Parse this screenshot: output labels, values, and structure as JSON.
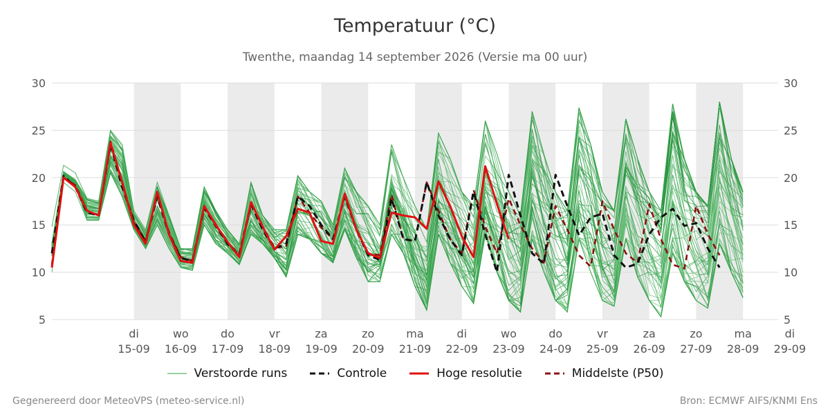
{
  "title": "Temperatuur (°C)",
  "subtitle": "Twenthe, maandag 14 september 2026 (Versie ma 00 uur)",
  "footer": {
    "left": "Gegenereerd door MeteoVPS (meteo-service.nl)",
    "right": "Bron: ECMWF AIFS/KNMI Ens"
  },
  "colors": {
    "ensemble": "#2e9e44",
    "control": "#111111",
    "hires": "#e01010",
    "median": "#8b1010",
    "weekend_band": "#ebebeb",
    "grid": "#dddddd"
  },
  "legend": [
    {
      "key": "ensemble",
      "label": "Verstoorde runs",
      "style": "thin"
    },
    {
      "key": "control",
      "label": "Controle",
      "style": "dashed"
    },
    {
      "key": "hires",
      "label": "Hoge resolutie",
      "style": "solid"
    },
    {
      "key": "median",
      "label": "Middelste (P50)",
      "style": "dashed"
    }
  ],
  "chart_data": {
    "type": "line",
    "title": "Temperatuur (°C)",
    "ylim": [
      5,
      30
    ],
    "yticks": [
      5,
      10,
      15,
      20,
      25,
      30
    ],
    "x_unit": "days after 2026-09-14 00:00",
    "xlim": [
      -0.75,
      14.75
    ],
    "xticks": [
      {
        "day": 1,
        "weekday": "di",
        "date": "15-09"
      },
      {
        "day": 2,
        "weekday": "wo",
        "date": "16-09"
      },
      {
        "day": 3,
        "weekday": "do",
        "date": "17-09"
      },
      {
        "day": 4,
        "weekday": "vr",
        "date": "18-09"
      },
      {
        "day": 5,
        "weekday": "za",
        "date": "19-09"
      },
      {
        "day": 6,
        "weekday": "zo",
        "date": "20-09"
      },
      {
        "day": 7,
        "weekday": "ma",
        "date": "21-09"
      },
      {
        "day": 8,
        "weekday": "di",
        "date": "22-09"
      },
      {
        "day": 9,
        "weekday": "wo",
        "date": "23-09"
      },
      {
        "day": 10,
        "weekday": "do",
        "date": "24-09"
      },
      {
        "day": 11,
        "weekday": "vr",
        "date": "25-09"
      },
      {
        "day": 12,
        "weekday": "za",
        "date": "26-09"
      },
      {
        "day": 13,
        "weekday": "zo",
        "date": "27-09"
      },
      {
        "day": 14,
        "weekday": "ma",
        "date": "28-09"
      },
      {
        "day": 15,
        "weekday": "di",
        "date": "29-09"
      }
    ],
    "shaded_bands": [
      [
        1,
        2
      ],
      [
        3,
        4
      ],
      [
        5,
        6
      ],
      [
        7,
        8
      ],
      [
        9,
        10
      ],
      [
        11,
        12
      ],
      [
        13,
        14
      ]
    ],
    "time_step_days": 0.25,
    "x_start": -0.75,
    "series": [
      {
        "name": "Controle",
        "style": "dashed",
        "values": [
          12.0,
          20.2,
          19.0,
          16.3,
          16.0,
          23.5,
          19.0,
          15.5,
          13.2,
          18.0,
          14.0,
          11.5,
          11.2,
          16.8,
          15.0,
          13.0,
          11.8,
          17.2,
          14.5,
          12.5,
          13.0,
          18.0,
          17.0,
          15.0,
          13.5,
          18.0,
          14.5,
          11.8,
          11.3,
          17.8,
          13.5,
          13.3,
          19.5,
          16.0,
          13.5,
          11.8,
          18.5,
          14.0,
          10.0,
          20.3,
          16.0,
          12.0,
          10.9,
          20.3,
          17.0,
          13.9,
          15.8,
          16.2,
          11.8,
          10.5,
          10.9,
          14.0,
          15.8,
          16.7,
          14.9,
          15.2,
          12.5,
          10.5
        ]
      },
      {
        "name": "Hoge resolutie",
        "style": "solid",
        "values": [
          10.5,
          20.0,
          19.0,
          16.5,
          16.0,
          23.7,
          19.5,
          15.0,
          13.0,
          18.5,
          14.0,
          11.2,
          11.0,
          17.0,
          15.0,
          13.2,
          11.6,
          17.4,
          14.8,
          12.4,
          13.8,
          16.7,
          16.3,
          13.3,
          13.0,
          18.3,
          14.5,
          12.0,
          11.5,
          16.3,
          16.0,
          15.8,
          14.6,
          19.6,
          17.0,
          13.8,
          11.6,
          21.2,
          17.2,
          13.5
        ]
      },
      {
        "name": "Middelste (P50)",
        "style": "dashed",
        "values": [
          10.8,
          20.0,
          19.2,
          16.5,
          16.0,
          23.8,
          19.5,
          15.3,
          13.3,
          18.2,
          14.2,
          11.6,
          11.2,
          16.8,
          14.8,
          13.0,
          12.0,
          17.4,
          14.8,
          12.6,
          12.7,
          18.0,
          16.3,
          14.7,
          13.5,
          18.2,
          14.5,
          12.0,
          11.8,
          18.2,
          13.5,
          13.3,
          19.5,
          16.5,
          13.5,
          12.0,
          18.7,
          14.8,
          12.0,
          17.8,
          15.0,
          12.5,
          11.0,
          17.0,
          14.5,
          11.8,
          10.6,
          17.5,
          14.5,
          12.0,
          11.0,
          17.2,
          13.5,
          10.8,
          10.4,
          17.0,
          14.0,
          11.8
        ]
      }
    ],
    "ensemble": {
      "name": "Verstoorde runs",
      "members": 50,
      "envelope_low": [
        10.0,
        19.5,
        18.5,
        15.5,
        15.5,
        20.5,
        18.0,
        14.5,
        12.5,
        15.0,
        12.5,
        10.5,
        10.2,
        15.0,
        13.0,
        12.0,
        10.8,
        14.0,
        13.0,
        11.5,
        9.5,
        14.0,
        13.5,
        12.0,
        11.0,
        14.5,
        11.5,
        9.0,
        9.0,
        14.0,
        12.0,
        8.5,
        6.0,
        14.0,
        11.0,
        8.5,
        6.7,
        14.0,
        10.0,
        7.0,
        5.8,
        13.5,
        10.0,
        7.0,
        5.8,
        13.5,
        10.0,
        7.0,
        6.4,
        13.5,
        9.5,
        7.0,
        5.3,
        12.0,
        9.0,
        7.0,
        6.2,
        13.0,
        10.0,
        7.3
      ],
      "envelope_high": [
        14.8,
        21.3,
        20.5,
        17.8,
        17.5,
        25.0,
        23.5,
        16.5,
        14.5,
        19.5,
        16.0,
        12.5,
        12.5,
        19.0,
        16.5,
        14.5,
        13.0,
        19.5,
        16.0,
        14.5,
        14.5,
        20.2,
        18.5,
        17.5,
        15.0,
        21.0,
        18.5,
        17.0,
        15.0,
        23.5,
        20.0,
        17.0,
        14.5,
        24.7,
        22.0,
        18.5,
        17.0,
        26.0,
        22.5,
        18.5,
        16.0,
        27.0,
        22.5,
        18.5,
        16.5,
        27.4,
        23.5,
        18.5,
        16.5,
        26.2,
        22.0,
        18.5,
        16.5,
        27.8,
        22.0,
        18.5,
        17.0,
        28.0,
        22.0,
        18.5
      ]
    }
  }
}
